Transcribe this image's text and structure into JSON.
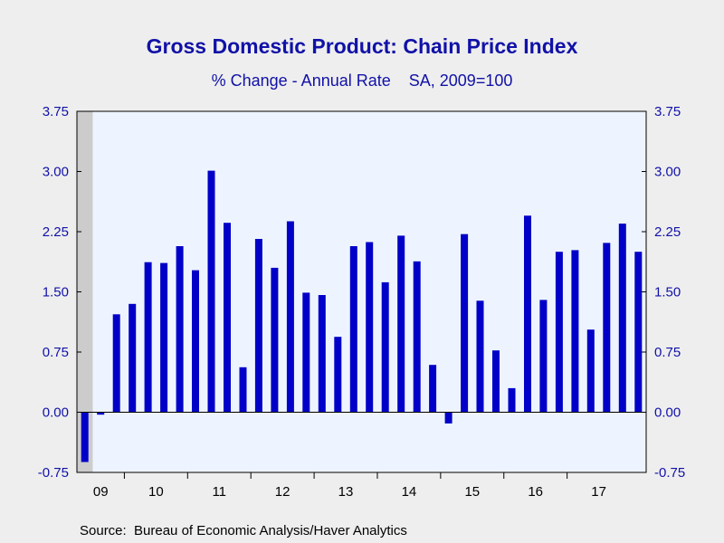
{
  "chart_data": {
    "type": "bar",
    "title": "Gross Domestic Product: Chain Price Index",
    "subtitle": "% Change - Annual Rate    SA, 2009=100",
    "source": "Source:  Bureau of Economic Analysis/Haver Analytics",
    "xlabel": "",
    "ylabel": "",
    "ylim": [
      -0.75,
      3.75
    ],
    "yticks": [
      "3.75",
      "3.00",
      "2.25",
      "1.50",
      "0.75",
      "0.00",
      "-0.75"
    ],
    "year_labels": [
      "09",
      "10",
      "11",
      "12",
      "13",
      "14",
      "15",
      "16",
      "17"
    ],
    "recession_shading": {
      "start_index": 0,
      "end_index": 0,
      "color": "#cccccc"
    },
    "categories": [
      "2009 Q2",
      "2009 Q3",
      "2009 Q4",
      "2010 Q1",
      "2010 Q2",
      "2010 Q3",
      "2010 Q4",
      "2011 Q1",
      "2011 Q2",
      "2011 Q3",
      "2011 Q4",
      "2012 Q1",
      "2012 Q2",
      "2012 Q3",
      "2012 Q4",
      "2013 Q1",
      "2013 Q2",
      "2013 Q3",
      "2013 Q4",
      "2014 Q1",
      "2014 Q2",
      "2014 Q3",
      "2014 Q4",
      "2015 Q1",
      "2015 Q2",
      "2015 Q3",
      "2015 Q4",
      "2016 Q1",
      "2016 Q2",
      "2016 Q3",
      "2016 Q4",
      "2017 Q1",
      "2017 Q2",
      "2017 Q3",
      "2017 Q4",
      "2018 Q1"
    ],
    "values": [
      -0.62,
      -0.03,
      1.22,
      1.35,
      1.87,
      1.86,
      2.07,
      1.77,
      3.01,
      2.36,
      0.56,
      2.16,
      1.8,
      2.38,
      1.49,
      1.46,
      0.94,
      2.07,
      2.12,
      1.62,
      2.2,
      1.88,
      0.59,
      -0.14,
      2.22,
      1.39,
      0.77,
      0.3,
      2.45,
      1.4,
      2.0,
      2.02,
      1.03,
      2.11,
      2.35,
      2.0
    ],
    "colors": {
      "bar": "#0000c8",
      "plot_background": "#eef4ff",
      "text": "#1111a8",
      "page_background": "#eeeeee"
    }
  }
}
